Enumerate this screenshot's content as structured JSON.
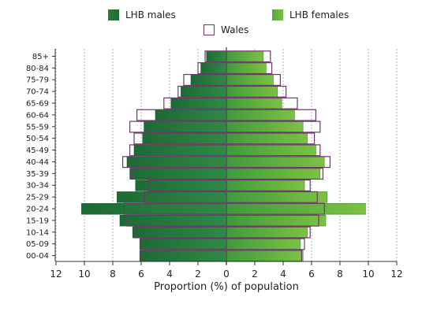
{
  "legend": {
    "males": "LHB males",
    "females": "LHB females",
    "wales": "Wales"
  },
  "colors": {
    "males_dark": "#1d6a34",
    "males_light": "#2f8a45",
    "females_dark": "#3f9a3c",
    "females_light": "#7cc242",
    "wales_outline": "#6a3a6a",
    "grid": "#b5b5b5",
    "axis": "#333333"
  },
  "chart_data": {
    "type": "bar",
    "orientation": "horizontal-population-pyramid",
    "categories": [
      "85+",
      "80-84",
      "75-79",
      "70-74",
      "65-69",
      "60-64",
      "55-59",
      "50-54",
      "45-49",
      "40-44",
      "35-39",
      "30-34",
      "25-29",
      "20-24",
      "15-19",
      "10-14",
      "05-09",
      "00-04"
    ],
    "series": [
      {
        "name": "LHB males",
        "side": "left",
        "values": [
          1.4,
          1.8,
          2.5,
          3.2,
          3.9,
          5.0,
          5.8,
          5.9,
          6.5,
          7.0,
          6.8,
          6.4,
          7.7,
          10.2,
          7.5,
          6.6,
          6.1,
          6.1
        ]
      },
      {
        "name": "LHB females",
        "side": "right",
        "values": [
          2.6,
          2.8,
          3.3,
          3.6,
          3.9,
          4.8,
          5.4,
          5.7,
          6.3,
          6.9,
          6.6,
          5.5,
          7.1,
          9.8,
          7.0,
          5.7,
          5.2,
          5.4
        ]
      },
      {
        "name": "Wales",
        "side": "both",
        "style": "outline",
        "left": [
          1.5,
          2.0,
          3.0,
          3.4,
          4.4,
          6.3,
          6.8,
          6.5,
          6.8,
          7.3,
          6.7,
          5.5,
          5.8,
          7.2,
          7.0,
          6.5,
          6.0,
          6.0
        ],
        "right": [
          3.1,
          3.2,
          3.8,
          4.2,
          5.0,
          6.3,
          6.6,
          6.2,
          6.6,
          7.3,
          6.8,
          5.9,
          6.4,
          6.9,
          6.5,
          5.9,
          5.5,
          5.3
        ]
      }
    ],
    "xlabel": "Proportion (%) of population",
    "xlim": [
      -12,
      12
    ],
    "xticks": [
      12,
      10,
      8,
      6,
      4,
      2,
      0,
      2,
      4,
      6,
      8,
      10,
      12
    ],
    "grid": true,
    "grid_style": "dotted-vertical",
    "legend_position": "top-center"
  }
}
